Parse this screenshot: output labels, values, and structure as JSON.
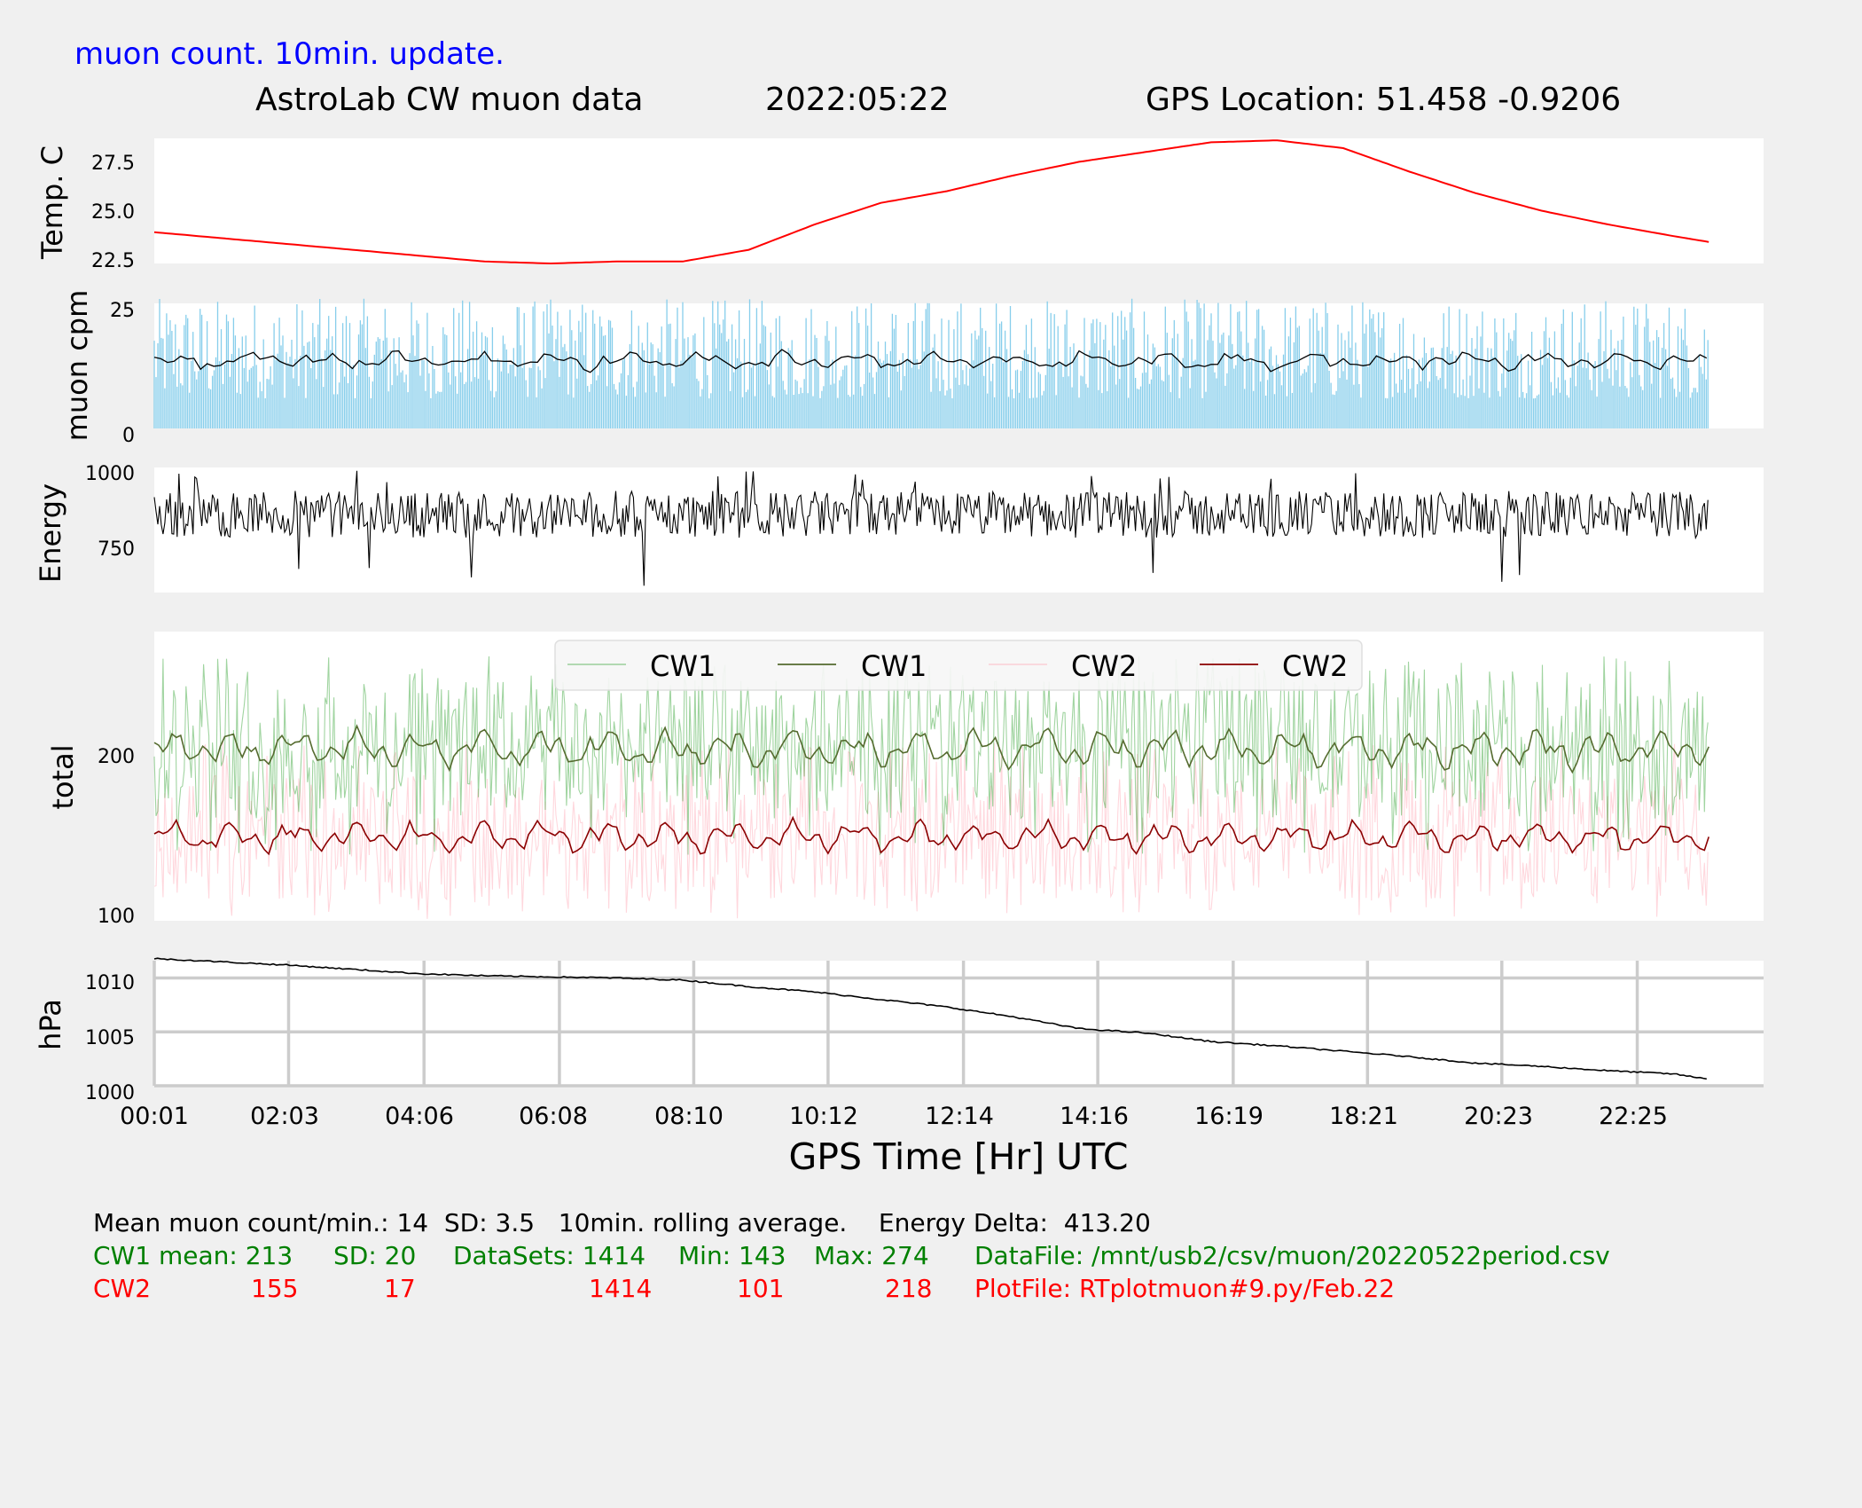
{
  "header": {
    "update_note": "muon count.  10min. update.",
    "title": "AstroLab CW muon data",
    "date": "2022:05:22",
    "gps_location": "GPS Location: 51.458   -0.9206"
  },
  "x_axis": {
    "label": "GPS Time  [Hr] UTC",
    "ticks": [
      "00:01",
      "02:03",
      "04:06",
      "06:08",
      "08:10",
      "10:12",
      "12:14",
      "14:16",
      "16:19",
      "18:21",
      "20:23",
      "22:25"
    ],
    "range": [
      0,
      1440
    ]
  },
  "colors": {
    "temp": "#ff0000",
    "muon_bars": "#87ceeb",
    "muon_avg": "#000000",
    "energy": "#000000",
    "cw1_raw": "#2ca02c",
    "cw1_avg": "#556b2f",
    "cw2_raw": "#ffb6c1",
    "cw2_avg": "#8b0000",
    "pressure": "#000000",
    "update_note": "#0000ff",
    "stats_green": "#008000",
    "stats_red": "#ff0000"
  },
  "chart_data": [
    {
      "type": "line",
      "id": "temperature",
      "ylabel": "Temp. C",
      "yticks": [
        "22.5",
        "25.0",
        "27.5"
      ],
      "ylim": [
        22.3,
        28.7
      ],
      "series": [
        {
          "x": [
            0,
            60,
            120,
            180,
            240,
            300,
            360,
            420,
            480,
            540,
            600,
            660,
            720,
            780,
            840,
            900,
            960,
            1020,
            1080,
            1140,
            1200,
            1260,
            1320,
            1380,
            1412
          ],
          "values": [
            23.9,
            23.6,
            23.3,
            23.0,
            22.7,
            22.4,
            22.3,
            22.4,
            22.4,
            23.0,
            24.3,
            25.4,
            26.0,
            26.8,
            27.5,
            28.0,
            28.5,
            28.6,
            28.2,
            27.0,
            25.9,
            25.0,
            24.3,
            23.7,
            23.4
          ]
        }
      ]
    },
    {
      "type": "bar",
      "id": "muon_cpm",
      "ylabel": "muon cpm",
      "yticks": [
        "0",
        "25"
      ],
      "ylim": [
        0,
        25
      ],
      "bar_range": [
        6,
        26
      ],
      "avg_range": [
        11,
        16
      ],
      "series": [
        {
          "name": "",
          "note": "per-minute counts (bars, 1414 datasets) with 10min. rolling average line"
        }
      ]
    },
    {
      "type": "line",
      "id": "energy",
      "ylabel": "Energy",
      "yticks": [
        "750",
        "1000"
      ],
      "ylim": [
        610,
        1010
      ],
      "value_range": [
        620,
        1000
      ]
    },
    {
      "type": "line",
      "id": "totals",
      "ylabel": "total",
      "yticks": [
        "100",
        "200"
      ],
      "ylim": [
        100,
        290
      ],
      "legend": [
        "CW1",
        "CW1",
        "CW2",
        "CW2"
      ],
      "legend_position": "top-center",
      "series": [
        {
          "name": "CW1",
          "role": "raw",
          "mean": 213,
          "min": 143,
          "max": 274
        },
        {
          "name": "CW1",
          "role": "10min. rolling average",
          "mean": 213
        },
        {
          "name": "CW2",
          "role": "raw",
          "mean": 155,
          "min": 101,
          "max": 218
        },
        {
          "name": "CW2",
          "role": "10min. rolling average",
          "mean": 155
        }
      ]
    },
    {
      "type": "line",
      "id": "pressure",
      "ylabel": "hPa",
      "yticks": [
        "1000",
        "1005",
        "1010"
      ],
      "ylim": [
        1000,
        1011.6
      ],
      "grid": true,
      "series": [
        {
          "x": [
            0,
            60,
            120,
            180,
            240,
            300,
            360,
            420,
            480,
            540,
            600,
            660,
            720,
            780,
            840,
            900,
            960,
            1020,
            1080,
            1140,
            1200,
            1260,
            1320,
            1380,
            1412
          ],
          "values": [
            1011.8,
            1011.5,
            1011.2,
            1010.8,
            1010.4,
            1010.2,
            1010.1,
            1010.0,
            1009.8,
            1009.2,
            1008.7,
            1008.0,
            1007.3,
            1006.4,
            1005.3,
            1004.9,
            1004.1,
            1003.7,
            1003.2,
            1002.7,
            1002.1,
            1001.8,
            1001.4,
            1001.1,
            1000.6
          ]
        }
      ]
    }
  ],
  "stats": {
    "summary": "Mean muon count/min.: 14  SD: 3.5   10min. rolling average.    Energy Delta:  413.20",
    "cw1": {
      "label": "CW1 mean: 213",
      "sd": "SD: 20",
      "datasets": "DataSets: 1414",
      "min": "Min: 143",
      "max": "Max: 274",
      "file": "DataFile: /mnt/usb2/csv/muon/20220522period.csv"
    },
    "cw2": {
      "label": "CW2",
      "mean": "155",
      "sd": "17",
      "datasets": "1414",
      "min": "101",
      "max": "218",
      "file": "PlotFile: RTplotmuon#9.py/Feb.22"
    }
  }
}
